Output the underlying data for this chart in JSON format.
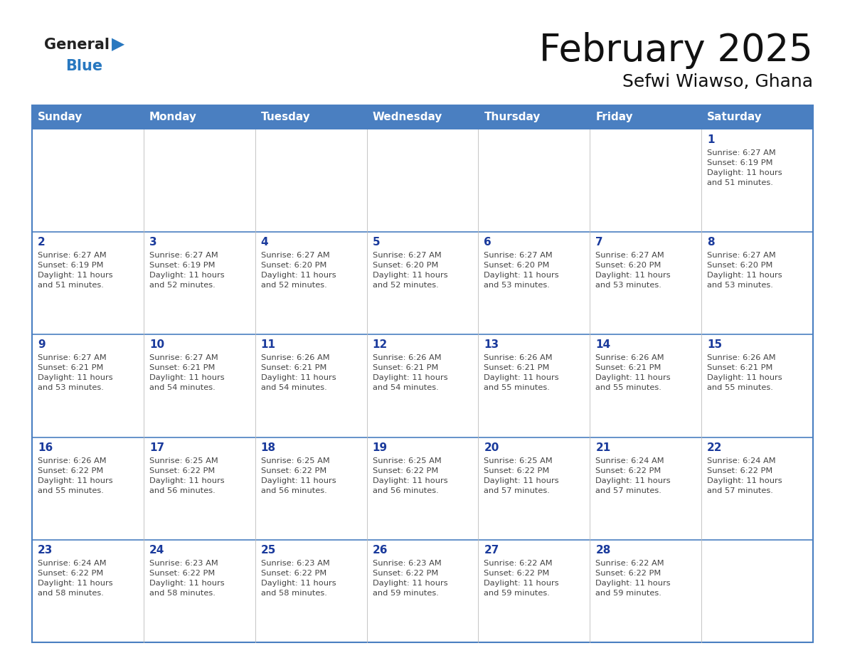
{
  "title": "February 2025",
  "subtitle": "Sefwi Wiawso, Ghana",
  "days_of_week": [
    "Sunday",
    "Monday",
    "Tuesday",
    "Wednesday",
    "Thursday",
    "Friday",
    "Saturday"
  ],
  "header_bg": "#4a7fc1",
  "header_text": "#FFFFFF",
  "cell_text": "#444444",
  "day_num_color": "#1a3a9c",
  "border_color": "#4a7fc1",
  "line_color": "#4a7fc1",
  "bg_color": "#FFFFFF",
  "weeks": [
    [
      {
        "day": null,
        "sunrise": null,
        "sunset": null,
        "daylight": null
      },
      {
        "day": null,
        "sunrise": null,
        "sunset": null,
        "daylight": null
      },
      {
        "day": null,
        "sunrise": null,
        "sunset": null,
        "daylight": null
      },
      {
        "day": null,
        "sunrise": null,
        "sunset": null,
        "daylight": null
      },
      {
        "day": null,
        "sunrise": null,
        "sunset": null,
        "daylight": null
      },
      {
        "day": null,
        "sunrise": null,
        "sunset": null,
        "daylight": null
      },
      {
        "day": 1,
        "sunrise": "6:27 AM",
        "sunset": "6:19 PM",
        "daylight": "11 hours\nand 51 minutes."
      }
    ],
    [
      {
        "day": 2,
        "sunrise": "6:27 AM",
        "sunset": "6:19 PM",
        "daylight": "11 hours\nand 51 minutes."
      },
      {
        "day": 3,
        "sunrise": "6:27 AM",
        "sunset": "6:19 PM",
        "daylight": "11 hours\nand 52 minutes."
      },
      {
        "day": 4,
        "sunrise": "6:27 AM",
        "sunset": "6:20 PM",
        "daylight": "11 hours\nand 52 minutes."
      },
      {
        "day": 5,
        "sunrise": "6:27 AM",
        "sunset": "6:20 PM",
        "daylight": "11 hours\nand 52 minutes."
      },
      {
        "day": 6,
        "sunrise": "6:27 AM",
        "sunset": "6:20 PM",
        "daylight": "11 hours\nand 53 minutes."
      },
      {
        "day": 7,
        "sunrise": "6:27 AM",
        "sunset": "6:20 PM",
        "daylight": "11 hours\nand 53 minutes."
      },
      {
        "day": 8,
        "sunrise": "6:27 AM",
        "sunset": "6:20 PM",
        "daylight": "11 hours\nand 53 minutes."
      }
    ],
    [
      {
        "day": 9,
        "sunrise": "6:27 AM",
        "sunset": "6:21 PM",
        "daylight": "11 hours\nand 53 minutes."
      },
      {
        "day": 10,
        "sunrise": "6:27 AM",
        "sunset": "6:21 PM",
        "daylight": "11 hours\nand 54 minutes."
      },
      {
        "day": 11,
        "sunrise": "6:26 AM",
        "sunset": "6:21 PM",
        "daylight": "11 hours\nand 54 minutes."
      },
      {
        "day": 12,
        "sunrise": "6:26 AM",
        "sunset": "6:21 PM",
        "daylight": "11 hours\nand 54 minutes."
      },
      {
        "day": 13,
        "sunrise": "6:26 AM",
        "sunset": "6:21 PM",
        "daylight": "11 hours\nand 55 minutes."
      },
      {
        "day": 14,
        "sunrise": "6:26 AM",
        "sunset": "6:21 PM",
        "daylight": "11 hours\nand 55 minutes."
      },
      {
        "day": 15,
        "sunrise": "6:26 AM",
        "sunset": "6:21 PM",
        "daylight": "11 hours\nand 55 minutes."
      }
    ],
    [
      {
        "day": 16,
        "sunrise": "6:26 AM",
        "sunset": "6:22 PM",
        "daylight": "11 hours\nand 55 minutes."
      },
      {
        "day": 17,
        "sunrise": "6:25 AM",
        "sunset": "6:22 PM",
        "daylight": "11 hours\nand 56 minutes."
      },
      {
        "day": 18,
        "sunrise": "6:25 AM",
        "sunset": "6:22 PM",
        "daylight": "11 hours\nand 56 minutes."
      },
      {
        "day": 19,
        "sunrise": "6:25 AM",
        "sunset": "6:22 PM",
        "daylight": "11 hours\nand 56 minutes."
      },
      {
        "day": 20,
        "sunrise": "6:25 AM",
        "sunset": "6:22 PM",
        "daylight": "11 hours\nand 57 minutes."
      },
      {
        "day": 21,
        "sunrise": "6:24 AM",
        "sunset": "6:22 PM",
        "daylight": "11 hours\nand 57 minutes."
      },
      {
        "day": 22,
        "sunrise": "6:24 AM",
        "sunset": "6:22 PM",
        "daylight": "11 hours\nand 57 minutes."
      }
    ],
    [
      {
        "day": 23,
        "sunrise": "6:24 AM",
        "sunset": "6:22 PM",
        "daylight": "11 hours\nand 58 minutes."
      },
      {
        "day": 24,
        "sunrise": "6:23 AM",
        "sunset": "6:22 PM",
        "daylight": "11 hours\nand 58 minutes."
      },
      {
        "day": 25,
        "sunrise": "6:23 AM",
        "sunset": "6:22 PM",
        "daylight": "11 hours\nand 58 minutes."
      },
      {
        "day": 26,
        "sunrise": "6:23 AM",
        "sunset": "6:22 PM",
        "daylight": "11 hours\nand 59 minutes."
      },
      {
        "day": 27,
        "sunrise": "6:22 AM",
        "sunset": "6:22 PM",
        "daylight": "11 hours\nand 59 minutes."
      },
      {
        "day": 28,
        "sunrise": "6:22 AM",
        "sunset": "6:22 PM",
        "daylight": "11 hours\nand 59 minutes."
      },
      {
        "day": null,
        "sunrise": null,
        "sunset": null,
        "daylight": null
      }
    ]
  ]
}
